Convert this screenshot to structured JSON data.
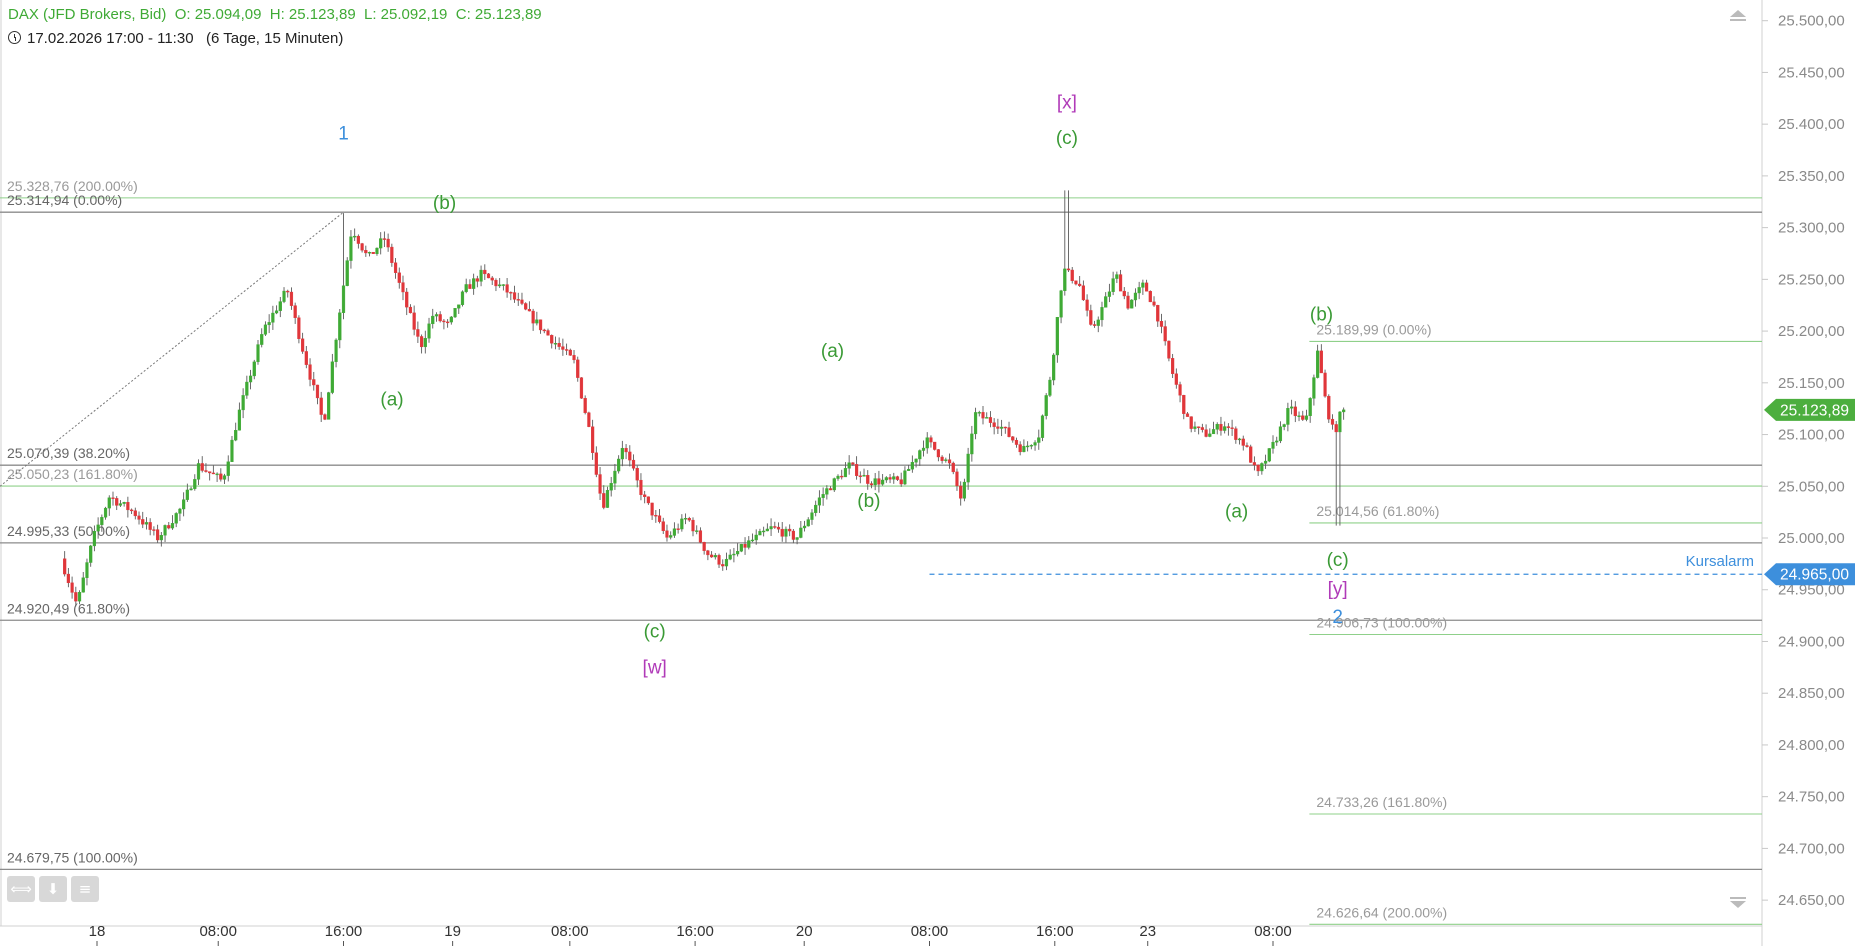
{
  "header": {
    "title": "DAX (JFD Brokers, Bid)  O: 25.094,09  H: 25.123,89  L: 25.092,19  C: 25.123,89",
    "range": "17.02.2026 17:00 - 11:30   (6 Tage, 15 Minuten)",
    "clock_icon": "clock-icon"
  },
  "colors": {
    "up": "#3faa35",
    "down": "#e0363a",
    "fib_gray": "#8c8c8c",
    "fib_green": "#8fd08a",
    "wave_green": "#3a9a35",
    "wave_magenta": "#b03ab8",
    "wave_blue": "#3d8fdc",
    "alarm_blue": "#3d8fdc"
  },
  "tools": [
    "arrows-horizontal-icon",
    "download-icon",
    "menu-lines-icon"
  ],
  "chart_data": {
    "type": "candlestick",
    "interval": "15 Minuten",
    "ylim": [
      24625,
      25520
    ],
    "y_ticks": [
      "25.500,00",
      "25.450,00",
      "25.400,00",
      "25.350,00",
      "25.300,00",
      "25.250,00",
      "25.200,00",
      "25.150,00",
      "25.100,00",
      "25.050,00",
      "25.000,00",
      "24.950,00",
      "24.900,00",
      "24.850,00",
      "24.800,00",
      "24.750,00",
      "24.700,00",
      "24.650,00"
    ],
    "y_tick_values": [
      25500,
      25450,
      25400,
      25350,
      25300,
      25250,
      25200,
      25150,
      25100,
      25050,
      25000,
      24950,
      24900,
      24850,
      24800,
      24750,
      24700,
      24650
    ],
    "x_ticks": [
      {
        "label": "18",
        "t": 0.04
      },
      {
        "label": "08:00",
        "t": 0.19
      },
      {
        "label": "16:00",
        "t": 0.345
      },
      {
        "label": "19",
        "t": 0.48
      },
      {
        "label": "08:00",
        "t": 0.625
      },
      {
        "label": "16:00",
        "t": 0.78
      },
      {
        "label": "20",
        "t": 0.915
      },
      {
        "label": "08:00",
        "t": 1.07
      },
      {
        "label": "16:00",
        "t": 1.225
      },
      {
        "label": "23",
        "t": 1.34
      },
      {
        "label": "08:00",
        "t": 1.495
      }
    ],
    "x_range": [
      -0.08,
      2.1
    ],
    "price_path": [
      {
        "t": 0.0,
        "p": 24980
      },
      {
        "t": 0.02,
        "p": 24935
      },
      {
        "t": 0.04,
        "p": 25000
      },
      {
        "t": 0.06,
        "p": 25040
      },
      {
        "t": 0.09,
        "p": 25025
      },
      {
        "t": 0.12,
        "p": 25000
      },
      {
        "t": 0.15,
        "p": 25030
      },
      {
        "t": 0.17,
        "p": 25070
      },
      {
        "t": 0.2,
        "p": 25055
      },
      {
        "t": 0.22,
        "p": 25120
      },
      {
        "t": 0.25,
        "p": 25200
      },
      {
        "t": 0.28,
        "p": 25240
      },
      {
        "t": 0.3,
        "p": 25180
      },
      {
        "t": 0.325,
        "p": 25110
      },
      {
        "t": 0.345,
        "p": 25220
      },
      {
        "t": 0.36,
        "p": 25300
      },
      {
        "t": 0.38,
        "p": 25270
      },
      {
        "t": 0.4,
        "p": 25290
      },
      {
        "t": 0.425,
        "p": 25230
      },
      {
        "t": 0.445,
        "p": 25185
      },
      {
        "t": 0.46,
        "p": 25215
      },
      {
        "t": 0.48,
        "p": 25205
      },
      {
        "t": 0.5,
        "p": 25240
      },
      {
        "t": 0.52,
        "p": 25255
      },
      {
        "t": 0.55,
        "p": 25240
      },
      {
        "t": 0.58,
        "p": 25215
      },
      {
        "t": 0.61,
        "p": 25190
      },
      {
        "t": 0.635,
        "p": 25170
      },
      {
        "t": 0.655,
        "p": 25100
      },
      {
        "t": 0.67,
        "p": 25030
      },
      {
        "t": 0.695,
        "p": 25090
      },
      {
        "t": 0.72,
        "p": 25040
      },
      {
        "t": 0.75,
        "p": 25000
      },
      {
        "t": 0.775,
        "p": 25020
      },
      {
        "t": 0.8,
        "p": 24985
      },
      {
        "t": 0.82,
        "p": 24975
      },
      {
        "t": 0.85,
        "p": 24995
      },
      {
        "t": 0.88,
        "p": 25010
      },
      {
        "t": 0.91,
        "p": 25000
      },
      {
        "t": 0.94,
        "p": 25040
      },
      {
        "t": 0.975,
        "p": 25070
      },
      {
        "t": 1.0,
        "p": 25055
      },
      {
        "t": 1.04,
        "p": 25055
      },
      {
        "t": 1.07,
        "p": 25095
      },
      {
        "t": 1.1,
        "p": 25070
      },
      {
        "t": 1.115,
        "p": 25035
      },
      {
        "t": 1.13,
        "p": 25120
      },
      {
        "t": 1.16,
        "p": 25110
      },
      {
        "t": 1.19,
        "p": 25085
      },
      {
        "t": 1.21,
        "p": 25100
      },
      {
        "t": 1.225,
        "p": 25160
      },
      {
        "t": 1.24,
        "p": 25260
      },
      {
        "t": 1.26,
        "p": 25245
      },
      {
        "t": 1.275,
        "p": 25200
      },
      {
        "t": 1.29,
        "p": 25225
      },
      {
        "t": 1.305,
        "p": 25255
      },
      {
        "t": 1.32,
        "p": 25225
      },
      {
        "t": 1.34,
        "p": 25245
      },
      {
        "t": 1.355,
        "p": 25220
      },
      {
        "t": 1.375,
        "p": 25160
      },
      {
        "t": 1.395,
        "p": 25110
      },
      {
        "t": 1.415,
        "p": 25100
      },
      {
        "t": 1.44,
        "p": 25110
      },
      {
        "t": 1.465,
        "p": 25090
      },
      {
        "t": 1.48,
        "p": 25060
      },
      {
        "t": 1.5,
        "p": 25090
      },
      {
        "t": 1.52,
        "p": 25125
      },
      {
        "t": 1.54,
        "p": 25110
      },
      {
        "t": 1.555,
        "p": 25180
      },
      {
        "t": 1.565,
        "p": 25130
      },
      {
        "t": 1.575,
        "p": 25100
      },
      {
        "t": 1.585,
        "p": 25124
      }
    ],
    "spikes": [
      {
        "t": 1.24,
        "high": 25336
      },
      {
        "t": 1.575,
        "low": 25012
      },
      {
        "t": 0.345,
        "high": 25314
      }
    ],
    "last_price": {
      "label": "25.123,89",
      "value": 25123.89
    },
    "price_alarm": {
      "label": "Kursalarm",
      "value_label": "24.965,00",
      "value": 24965,
      "t_start": 1.07
    },
    "fib_lines": [
      {
        "label": "25.328,76 (200.00%)",
        "value": 25328.76,
        "style": "green",
        "t_start": -0.08
      },
      {
        "label": "25.314,94 (0.00%)",
        "value": 25314.94,
        "style": "gray",
        "t_start": -0.08
      },
      {
        "label": "25.070,39 (38.20%)",
        "value": 25070.39,
        "style": "gray",
        "t_start": -0.08
      },
      {
        "label": "25.050,23 (161.80%)",
        "value": 25050.23,
        "style": "green",
        "t_start": -0.08
      },
      {
        "label": "24.995,33 (50.00%)",
        "value": 24995.33,
        "style": "gray",
        "t_start": -0.08
      },
      {
        "label": "24.920,49 (61.80%)",
        "value": 24920.49,
        "style": "gray",
        "t_start": -0.08
      },
      {
        "label": "24.679,75 (100.00%)",
        "value": 24679.75,
        "style": "gray",
        "t_start": -0.08
      },
      {
        "label": "25.189,99 (0.00%)",
        "value": 25189.99,
        "style": "green",
        "t_start": 1.54
      },
      {
        "label": "25.014,56 (61.80%)",
        "value": 25014.56,
        "style": "green",
        "t_start": 1.54
      },
      {
        "label": "24.906,73 (100.00%)",
        "value": 24906.73,
        "style": "green",
        "t_start": 1.54
      },
      {
        "label": "24.733,26 (161.80%)",
        "value": 24733.26,
        "style": "green",
        "t_start": 1.54
      },
      {
        "label": "24.626,64 (200.00%)",
        "value": 24626.64,
        "style": "green",
        "t_start": 1.54
      }
    ],
    "trendline": {
      "from": {
        "t": -0.08,
        "p": 25050
      },
      "to": {
        "t": 0.345,
        "p": 25314.94
      }
    },
    "wave_labels": [
      {
        "text": "1",
        "t": 0.345,
        "p": 25385,
        "color": "blue"
      },
      {
        "text": "(b)",
        "t": 0.47,
        "p": 25318,
        "color": "green"
      },
      {
        "text": "(a)",
        "t": 0.405,
        "p": 25128,
        "color": "green"
      },
      {
        "text": "(c)",
        "t": 0.73,
        "p": 24904,
        "color": "green"
      },
      {
        "text": "[w]",
        "t": 0.73,
        "p": 24869,
        "color": "magenta"
      },
      {
        "text": "(a)",
        "t": 0.95,
        "p": 25175,
        "color": "green"
      },
      {
        "text": "(b)",
        "t": 0.995,
        "p": 25030,
        "color": "green"
      },
      {
        "text": "[x]",
        "t": 1.24,
        "p": 25415,
        "color": "magenta"
      },
      {
        "text": "(c)",
        "t": 1.24,
        "p": 25381,
        "color": "green"
      },
      {
        "text": "(b)",
        "t": 1.555,
        "p": 25210,
        "color": "green"
      },
      {
        "text": "(a)",
        "t": 1.45,
        "p": 25020,
        "color": "green"
      },
      {
        "text": "(c)",
        "t": 1.575,
        "p": 24973,
        "color": "green"
      },
      {
        "text": "[y]",
        "t": 1.575,
        "p": 24945,
        "color": "magenta"
      },
      {
        "text": "2",
        "t": 1.575,
        "p": 24918,
        "color": "blue"
      }
    ]
  }
}
